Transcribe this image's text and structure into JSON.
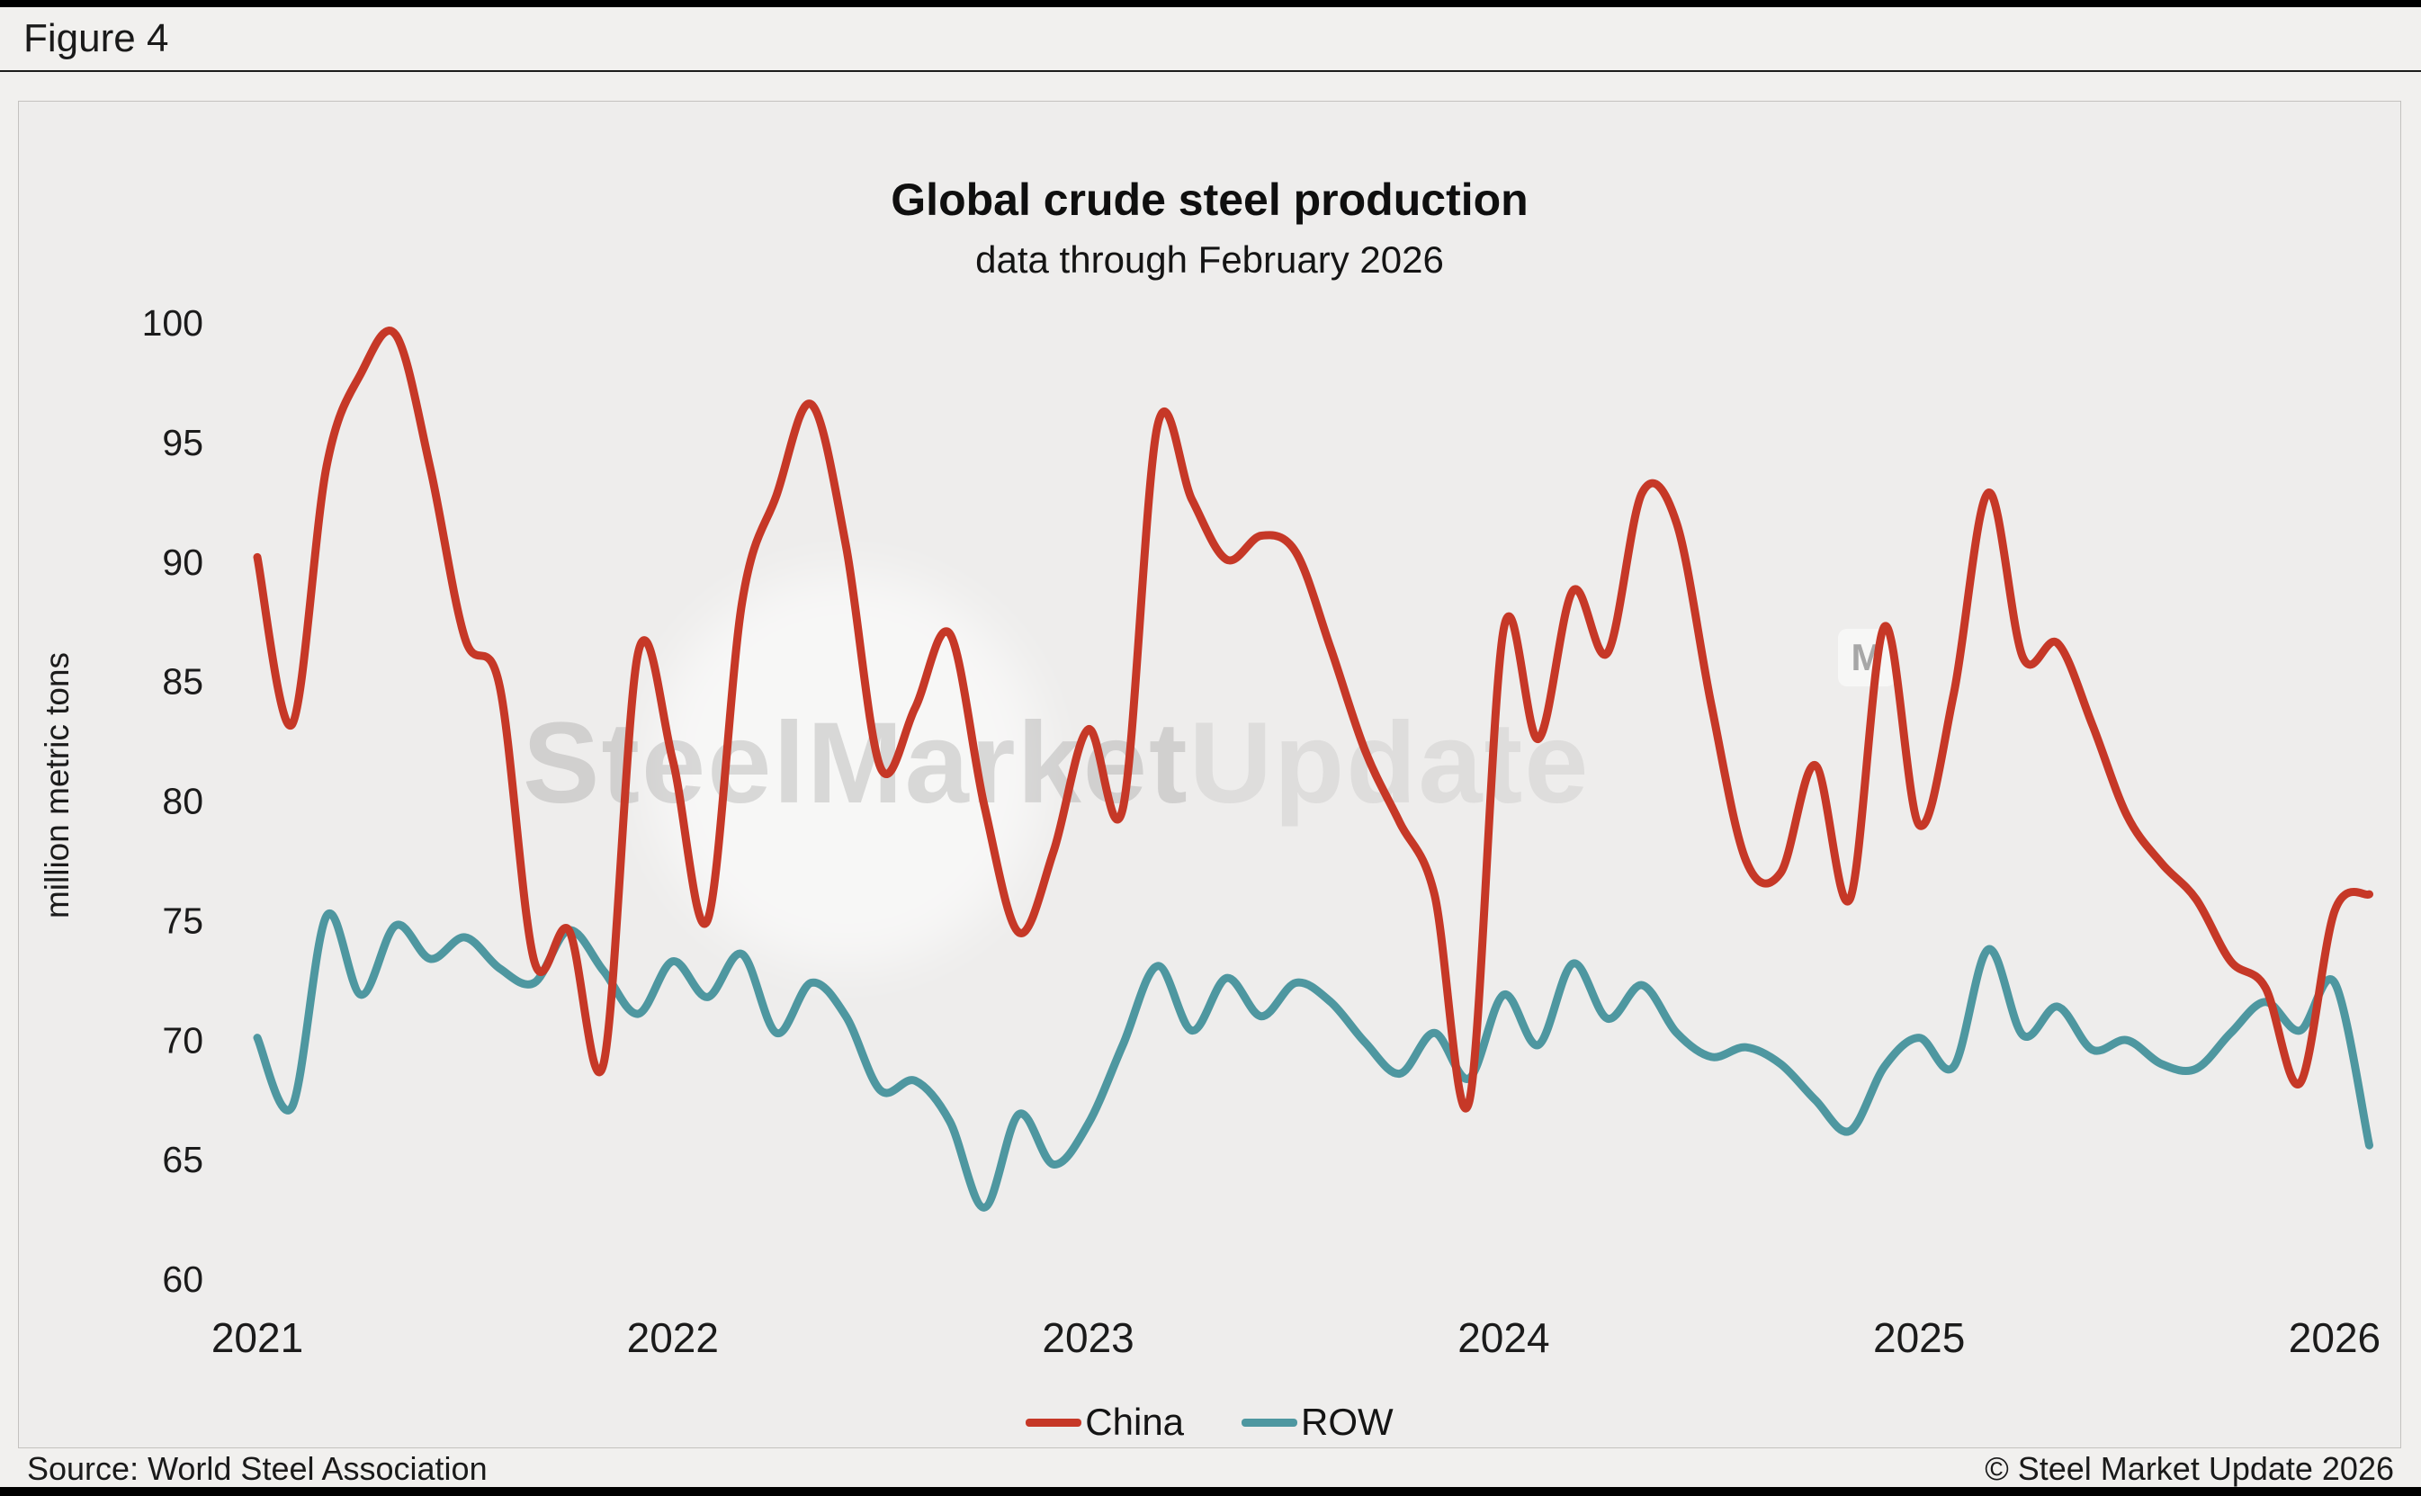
{
  "figure_label": "Figure 4",
  "chart_data": {
    "type": "line",
    "title": "Global crude steel production",
    "subtitle": "data through February 2026",
    "ylabel": "million metric tons",
    "xlabel": "",
    "ylim": [
      60,
      100
    ],
    "yticks": [
      100,
      95,
      90,
      85,
      80,
      75,
      70,
      65,
      60
    ],
    "xticks": [
      "2021",
      "2022",
      "2023",
      "2024",
      "2025",
      "2026"
    ],
    "grid": false,
    "legend_position": "bottom",
    "x_monthly": [
      "2021-01",
      "2021-02",
      "2021-03",
      "2021-04",
      "2021-05",
      "2021-06",
      "2021-07",
      "2021-08",
      "2021-09",
      "2021-10",
      "2021-11",
      "2021-12",
      "2022-01",
      "2022-02",
      "2022-03",
      "2022-04",
      "2022-05",
      "2022-06",
      "2022-07",
      "2022-08",
      "2022-09",
      "2022-10",
      "2022-11",
      "2022-12",
      "2023-01",
      "2023-02",
      "2023-03",
      "2023-04",
      "2023-05",
      "2023-06",
      "2023-07",
      "2023-08",
      "2023-09",
      "2023-10",
      "2023-11",
      "2023-12",
      "2024-01",
      "2024-02",
      "2024-03",
      "2024-04",
      "2024-05",
      "2024-06",
      "2024-07",
      "2024-08",
      "2024-09",
      "2024-10",
      "2024-11",
      "2024-12",
      "2025-01",
      "2025-02",
      "2025-03",
      "2025-04",
      "2025-05",
      "2025-06",
      "2025-07",
      "2025-08",
      "2025-09",
      "2025-10",
      "2025-11",
      "2025-12",
      "2026-01",
      "2026-02"
    ],
    "series": [
      {
        "name": "China",
        "color": "#c63827",
        "values": [
          90.2,
          83.2,
          94.0,
          97.9,
          99.5,
          93.9,
          86.8,
          84.8,
          73.3,
          74.6,
          69.0,
          86.2,
          81.7,
          75.0,
          88.3,
          92.8,
          96.6,
          90.7,
          81.4,
          83.9,
          87.0,
          79.8,
          74.5,
          77.9,
          83.0,
          79.7,
          95.7,
          92.6,
          90.1,
          91.1,
          90.4,
          86.4,
          82.1,
          79.1,
          76.1,
          67.4,
          87.2,
          82.6,
          88.8,
          86.2,
          92.9,
          91.6,
          84.0,
          77.5,
          77.0,
          81.5,
          75.9,
          87.3,
          79.0,
          84.5,
          92.9,
          86.0,
          86.6,
          83.2,
          79.4,
          77.4,
          75.9,
          73.3,
          72.2,
          68.2,
          75.4,
          76.1
        ]
      },
      {
        "name": "ROW",
        "color": "#4e97a0",
        "values": [
          70.1,
          67.2,
          75.2,
          71.9,
          74.8,
          73.4,
          74.3,
          73.0,
          72.4,
          74.6,
          72.9,
          71.1,
          73.3,
          71.8,
          73.6,
          70.3,
          72.4,
          71.0,
          67.9,
          68.3,
          66.6,
          63.0,
          66.9,
          64.8,
          66.5,
          69.8,
          73.1,
          70.4,
          72.6,
          71.0,
          72.4,
          71.6,
          69.9,
          68.6,
          70.3,
          68.4,
          71.9,
          69.8,
          73.2,
          70.9,
          72.3,
          70.3,
          69.3,
          69.7,
          69.0,
          67.5,
          66.2,
          68.9,
          70.1,
          68.9,
          73.8,
          70.2,
          71.4,
          69.6,
          70.0,
          69.0,
          68.8,
          70.3,
          71.6,
          70.4,
          72.4,
          65.6
        ]
      }
    ]
  },
  "footer": {
    "source": "Source: World Steel Association",
    "copyright": "© Steel Market Update 2026"
  },
  "watermark": {
    "part1": "Steel",
    "part2": "Market",
    "part3": "Update",
    "badge": "M"
  }
}
